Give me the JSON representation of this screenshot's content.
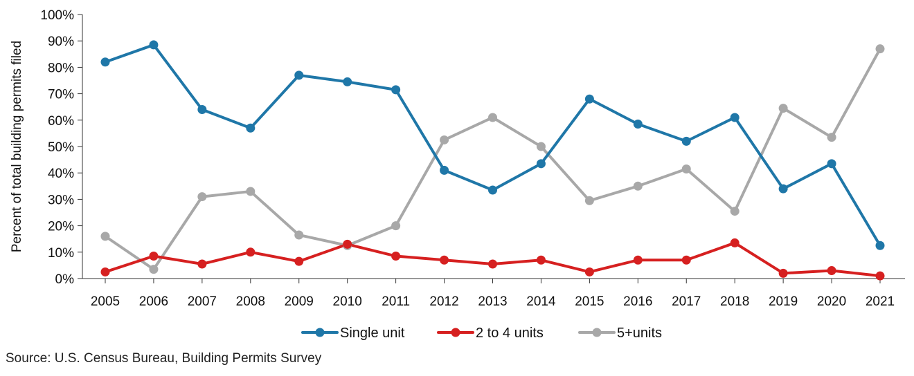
{
  "chart_data": {
    "type": "line",
    "title": "",
    "xlabel": "",
    "ylabel": "Percent of total building permits filed",
    "ylim": [
      0,
      100
    ],
    "yticks": [
      "0%",
      "10%",
      "20%",
      "30%",
      "40%",
      "50%",
      "60%",
      "70%",
      "80%",
      "90%",
      "100%"
    ],
    "categories": [
      "2005",
      "2006",
      "2007",
      "2008",
      "2009",
      "2010",
      "2011",
      "2012",
      "2013",
      "2014",
      "2015",
      "2016",
      "2017",
      "2018",
      "2019",
      "2020",
      "2021"
    ],
    "legend_position": "bottom-center",
    "grid": false,
    "series": [
      {
        "name": "Single unit",
        "color": "#1f77a8",
        "values": [
          82,
          88.5,
          64,
          57,
          77,
          74.5,
          71.5,
          41,
          33.5,
          43.5,
          68,
          58.5,
          52,
          61,
          34,
          43.5,
          12.5
        ]
      },
      {
        "name": "2 to 4 units",
        "color": "#d62020",
        "values": [
          2.5,
          8.5,
          5.5,
          10,
          6.5,
          13,
          8.5,
          7,
          5.5,
          7,
          2.5,
          7,
          7,
          13.5,
          2,
          3,
          1
        ]
      },
      {
        "name": "5+units",
        "color": "#a8a8a8",
        "values": [
          16,
          3.5,
          31,
          33,
          16.5,
          12.5,
          20,
          52.5,
          61,
          50,
          29.5,
          35,
          41.5,
          25.5,
          64.5,
          53.5,
          87
        ]
      }
    ]
  },
  "source": "Source: U.S. Census Bureau, Building Permits Survey"
}
